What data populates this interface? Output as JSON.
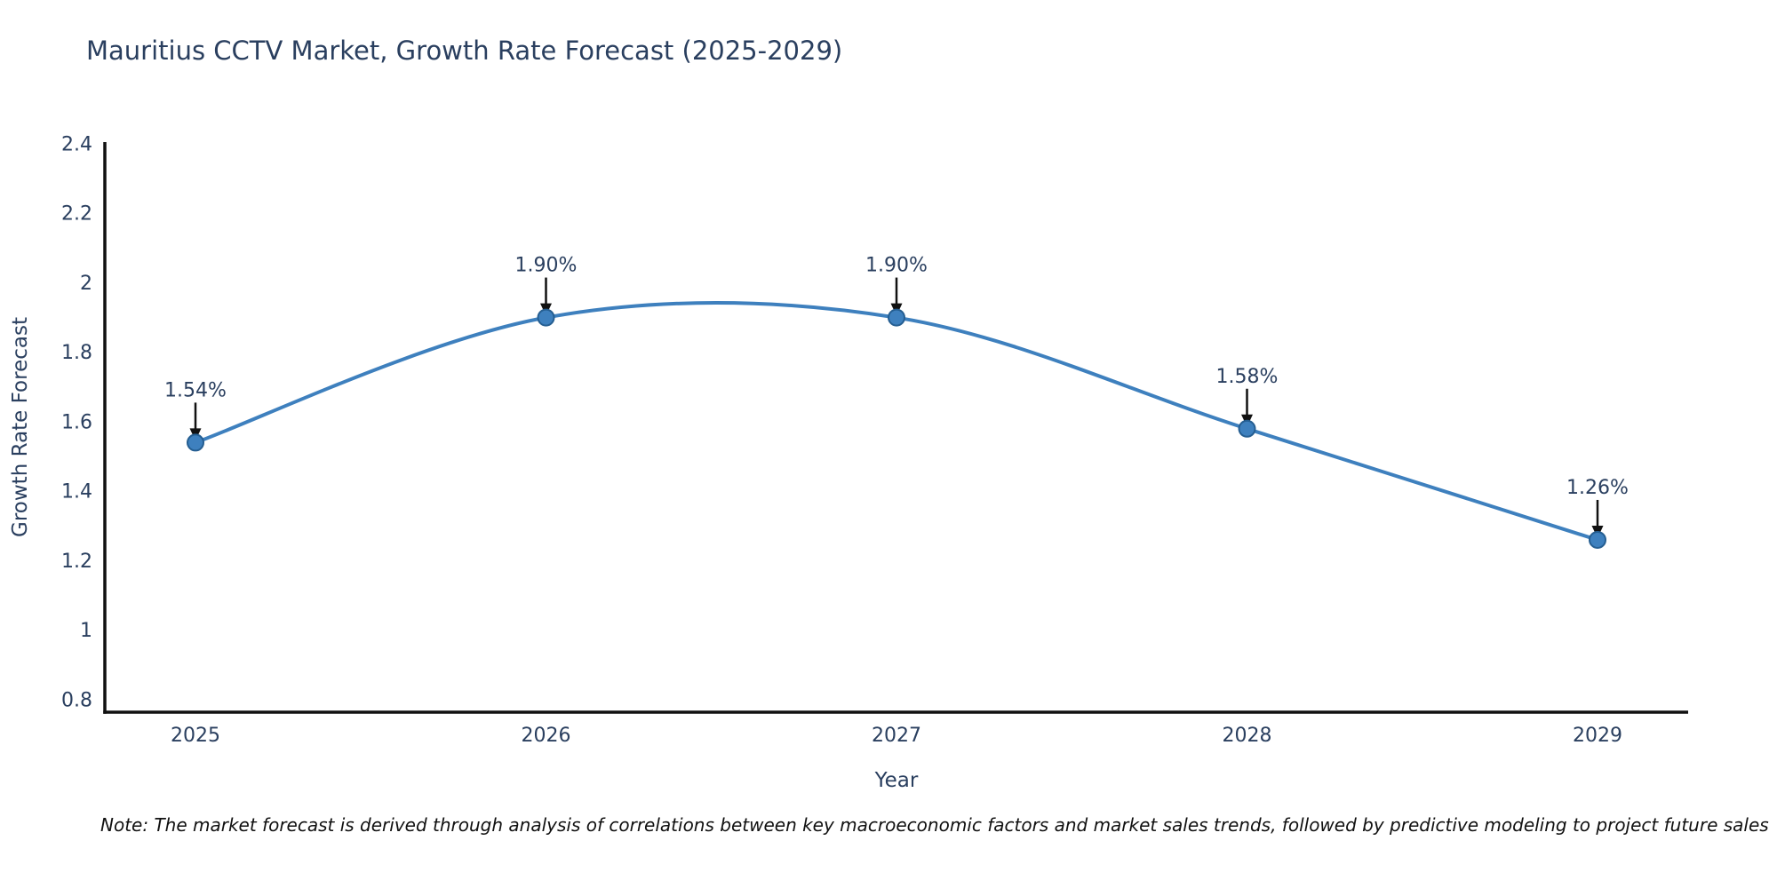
{
  "title": {
    "text": "Mauritius CCTV Market, Growth Rate Forecast (2025-2029)",
    "color": "#2a3f5f"
  },
  "note": {
    "text": "Note: The market forecast is derived through analysis of correlations between key macroeconomic factors and market sales trends, followed by predictive modeling to project future sales"
  },
  "chart_data": {
    "type": "line",
    "title": "Mauritius CCTV Market, Growth Rate Forecast (2025-2029)",
    "xlabel": "Year",
    "ylabel": "Growth Rate Forecast",
    "x": [
      2025,
      2026,
      2027,
      2028,
      2029
    ],
    "x_tick_labels": [
      "2025",
      "2026",
      "2027",
      "2028",
      "2029"
    ],
    "series": [
      {
        "name": "Growth Rate Forecast",
        "values": [
          1.54,
          1.9,
          1.9,
          1.58,
          1.26
        ]
      }
    ],
    "point_labels": [
      "1.54%",
      "1.90%",
      "1.90%",
      "1.58%",
      "1.26%"
    ],
    "y_ticks": [
      0.8,
      1,
      1.2,
      1.4,
      1.6,
      1.8,
      2,
      2.2,
      2.4
    ],
    "y_tick_labels": [
      "0.8",
      "1",
      "1.2",
      "1.4",
      "1.6",
      "1.8",
      "2",
      "2.2",
      "2.4"
    ],
    "ylim": [
      0.764,
      2.405
    ],
    "line_shape": "spline",
    "grid": false,
    "legend": "none",
    "colors": {
      "line": "#3e80be",
      "marker_fill": "#3e80be",
      "marker_edge": "#255e91",
      "axis_line": "#111111",
      "tick_text": "#2a3f5f",
      "annotation_text": "#2a3f5f",
      "arrow": "#111111"
    }
  }
}
